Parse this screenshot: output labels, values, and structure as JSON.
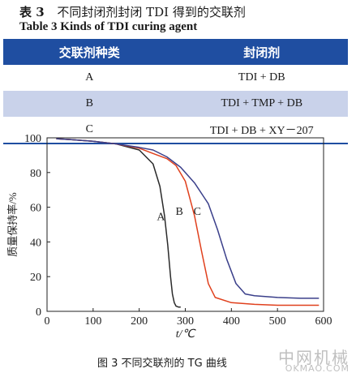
{
  "table": {
    "caption_label": "表 3",
    "caption_cn": "不同封闭剂封闭 TDI 得到的交联剂",
    "caption_en": "Table 3    Kinds of TDI curing agent",
    "headers": [
      "交联剂种类",
      "封闭剂"
    ],
    "rows": [
      {
        "type": "A",
        "agent": "TDI + DB"
      },
      {
        "type": "B",
        "agent": "TDI + TMP + DB"
      },
      {
        "type": "C",
        "agent": "TDI + DB + XY－207"
      }
    ]
  },
  "figure": {
    "caption": "图 3    不同交联剂的 TG 曲线"
  },
  "watermark": {
    "cn": "中网机械",
    "en": "OKMAO.COM"
  },
  "chart_data": {
    "type": "line",
    "xlabel": "t/℃",
    "ylabel": "质量保持率/%",
    "xlim": [
      0,
      600
    ],
    "ylim": [
      0,
      100
    ],
    "xticks": [
      0,
      100,
      200,
      300,
      400,
      500,
      600
    ],
    "yticks": [
      0,
      20,
      40,
      60,
      80,
      100
    ],
    "grid": false,
    "series": [
      {
        "name": "A",
        "x": [
          20,
          50,
          100,
          150,
          200,
          230,
          245,
          255,
          262,
          268,
          272,
          276,
          280,
          285,
          290
        ],
        "y": [
          99.5,
          99,
          98,
          96.5,
          93,
          85,
          72,
          55,
          38,
          20,
          10,
          5,
          3,
          2.5,
          2.5
        ]
      },
      {
        "name": "B",
        "x": [
          20,
          50,
          100,
          150,
          200,
          230,
          260,
          280,
          300,
          320,
          335,
          350,
          365,
          400,
          450,
          500,
          550,
          590
        ],
        "y": [
          99.5,
          99,
          98,
          96.5,
          94,
          91,
          88,
          84,
          75,
          55,
          35,
          16,
          8,
          5,
          4,
          3.5,
          3.5,
          3.5
        ]
      },
      {
        "name": "C",
        "x": [
          20,
          50,
          100,
          150,
          200,
          230,
          260,
          290,
          320,
          350,
          370,
          390,
          410,
          430,
          450,
          500,
          550,
          590
        ],
        "y": [
          99.5,
          99,
          98,
          96.5,
          94.5,
          93,
          89,
          83,
          74,
          62,
          47,
          30,
          16,
          10,
          9,
          8,
          7.5,
          7.5
        ]
      }
    ],
    "annotations": [
      {
        "text": "A",
        "x": 247,
        "y": 55
      },
      {
        "text": "B",
        "x": 287,
        "y": 58
      },
      {
        "text": "C",
        "x": 326,
        "y": 58
      }
    ]
  }
}
